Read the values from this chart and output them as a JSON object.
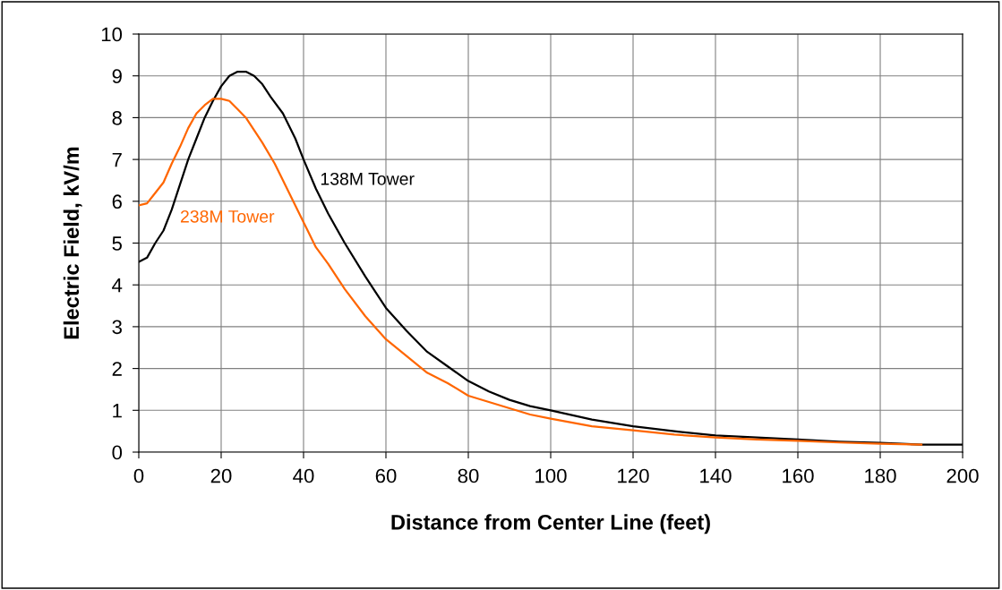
{
  "chart_data": {
    "type": "line",
    "xlabel": "Distance from Center Line (feet)",
    "ylabel": "Electric Field, kV/m",
    "xlim": [
      0,
      200
    ],
    "xticks": [
      0,
      20,
      40,
      60,
      80,
      100,
      120,
      140,
      160,
      180,
      200
    ],
    "ylim": [
      0,
      10
    ],
    "yticks": [
      0,
      1,
      2,
      3,
      4,
      5,
      6,
      7,
      8,
      9,
      10
    ],
    "grid": true,
    "legend": false,
    "marker": "none",
    "line_style": "solid",
    "series": [
      {
        "name": "138M Tower",
        "color": "#000000",
        "x": [
          0,
          2,
          4,
          6,
          8,
          10,
          12,
          14,
          16,
          18,
          20,
          22,
          24,
          26,
          28,
          30,
          32,
          35,
          38,
          40,
          43,
          46,
          50,
          55,
          60,
          65,
          70,
          75,
          80,
          85,
          90,
          95,
          100,
          110,
          120,
          130,
          140,
          150,
          160,
          170,
          180,
          190,
          200
        ],
        "values": [
          4.55,
          4.65,
          5.0,
          5.3,
          5.8,
          6.4,
          7.0,
          7.5,
          8.0,
          8.4,
          8.75,
          9.0,
          9.1,
          9.1,
          9.0,
          8.8,
          8.5,
          8.1,
          7.5,
          7.0,
          6.3,
          5.7,
          5.0,
          4.2,
          3.45,
          2.9,
          2.4,
          2.05,
          1.7,
          1.45,
          1.25,
          1.1,
          1.0,
          0.78,
          0.62,
          0.5,
          0.4,
          0.35,
          0.3,
          0.25,
          0.22,
          0.18,
          0.18
        ]
      },
      {
        "name": "238M Tower",
        "color": "#ff6600",
        "x": [
          0,
          2,
          4,
          6,
          8,
          10,
          12,
          14,
          16,
          18,
          20,
          22,
          24,
          26,
          28,
          30,
          33,
          36,
          40,
          43,
          46,
          50,
          55,
          60,
          65,
          70,
          75,
          80,
          85,
          90,
          95,
          100,
          110,
          120,
          130,
          140,
          150,
          160,
          170,
          180,
          190
        ],
        "values": [
          5.9,
          5.95,
          6.2,
          6.45,
          6.9,
          7.3,
          7.75,
          8.1,
          8.3,
          8.45,
          8.45,
          8.4,
          8.2,
          8.0,
          7.7,
          7.4,
          6.9,
          6.3,
          5.5,
          4.9,
          4.5,
          3.9,
          3.25,
          2.7,
          2.3,
          1.9,
          1.65,
          1.35,
          1.2,
          1.05,
          0.9,
          0.8,
          0.62,
          0.52,
          0.42,
          0.35,
          0.3,
          0.27,
          0.23,
          0.2,
          0.18
        ]
      }
    ]
  }
}
